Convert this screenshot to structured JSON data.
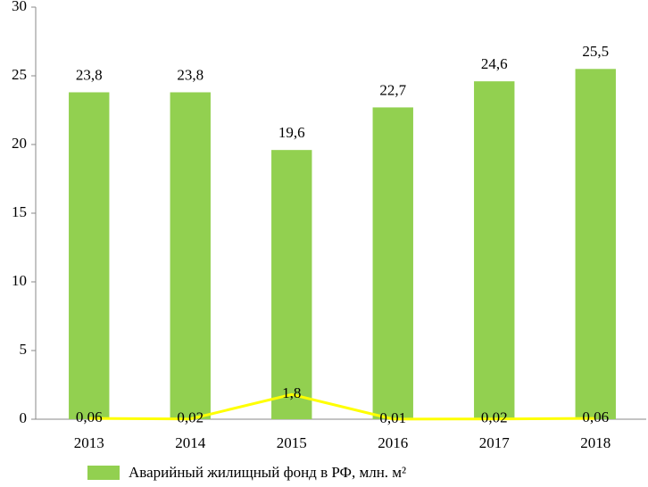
{
  "chart_data": {
    "type": "bar",
    "categories": [
      "2013",
      "2014",
      "2015",
      "2016",
      "2017",
      "2018"
    ],
    "series": [
      {
        "name": "Аварийный жилищный фонд в РФ, млн. м²",
        "type": "bar",
        "color": "#92d050",
        "values": [
          23.8,
          23.8,
          19.6,
          22.7,
          24.6,
          25.5
        ],
        "value_labels": [
          "23,8",
          "23,8",
          "19,6",
          "22,7",
          "24,6",
          "25,5"
        ]
      },
      {
        "type": "line",
        "color": "#ffff00",
        "values": [
          0.06,
          0.02,
          1.8,
          0.01,
          0.02,
          0.06
        ],
        "value_labels": [
          "0,06",
          "0,02",
          "1,8",
          "0,01",
          "0,02",
          "0,06"
        ]
      }
    ],
    "ylim": [
      0,
      30
    ],
    "yticks": [
      0,
      5,
      10,
      15,
      20,
      25,
      30
    ],
    "grid": false,
    "legend": "bottom"
  }
}
